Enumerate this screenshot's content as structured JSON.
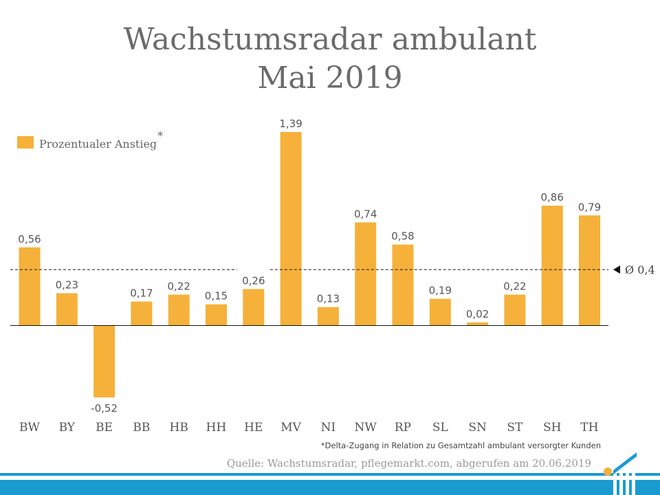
{
  "title_line1": "Wachstumsradar ambulant",
  "title_line2": "Mai 2019",
  "legend": {
    "label": "Prozentualer Anstieg",
    "marker": "*"
  },
  "average_label": "Ø 0,4",
  "footnote": "*Delta-Zugang in Relation zu Gesamtzahl ambulant versorgter Kunden",
  "source": "Quelle: Wachstumsradar, pflegemarkt.com, abgerufen am 20.06.2019",
  "colors": {
    "bar": "#f5b13a",
    "band": "#1a9bd0",
    "logo_dot": "#f5b13a"
  },
  "chart_data": {
    "type": "bar",
    "categories": [
      "BW",
      "BY",
      "BE",
      "BB",
      "HB",
      "HH",
      "HE",
      "MV",
      "NI",
      "NW",
      "RP",
      "SL",
      "SN",
      "ST",
      "SH",
      "TH"
    ],
    "series": [
      {
        "name": "Prozentualer Anstieg",
        "values": [
          0.56,
          0.23,
          -0.52,
          0.17,
          0.22,
          0.15,
          0.26,
          1.39,
          0.13,
          0.74,
          0.58,
          0.19,
          0.02,
          0.22,
          0.86,
          0.79
        ],
        "value_labels": [
          "0,56",
          "0,23",
          "-0,52",
          "0,17",
          "0,22",
          "0,15",
          "0,26",
          "1,39",
          "0,13",
          "0,74",
          "0,58",
          "0,19",
          "0,02",
          "0,22",
          "0,86",
          "0,79"
        ]
      }
    ],
    "reference_line": {
      "value": 0.4,
      "style": "dashed"
    },
    "grid": false,
    "legend_position": "top-left"
  }
}
